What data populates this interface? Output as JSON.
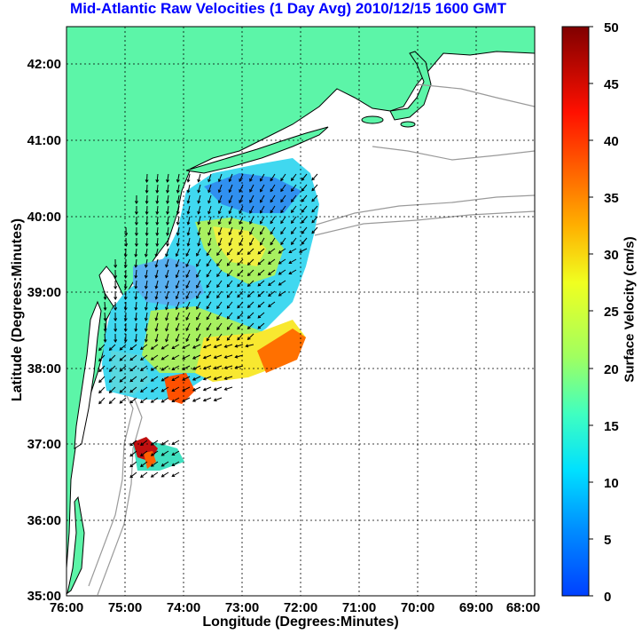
{
  "title": "Mid-Atlantic Raw Velocities (1 Day Avg) 2010/12/15 1600 GMT",
  "xlabel": "Longitude (Degrees:Minutes)",
  "ylabel": "Latitude (Degrees:Minutes)",
  "colorbar": {
    "label": "Surface Velocity (cm/s)",
    "ticks": [
      "0",
      "5",
      "10",
      "15",
      "20",
      "25",
      "30",
      "35",
      "40",
      "45",
      "50"
    ],
    "range": [
      0,
      50
    ]
  },
  "axes": {
    "x_ticks": [
      "76:00",
      "75:00",
      "74:00",
      "73:00",
      "72:00",
      "71:00",
      "70:00",
      "69:00",
      "68:00"
    ],
    "y_ticks": [
      "42:00",
      "41:00",
      "40:00",
      "39:00",
      "38:00",
      "37:00",
      "36:00",
      "35:00"
    ],
    "lon_range": [
      -76,
      -68
    ],
    "lat_range": [
      35,
      42.5
    ]
  },
  "colors": {
    "title": "#0000ff",
    "land": "#5cf5a8",
    "contours": "#9a9a9a",
    "grid": "#000000"
  }
}
